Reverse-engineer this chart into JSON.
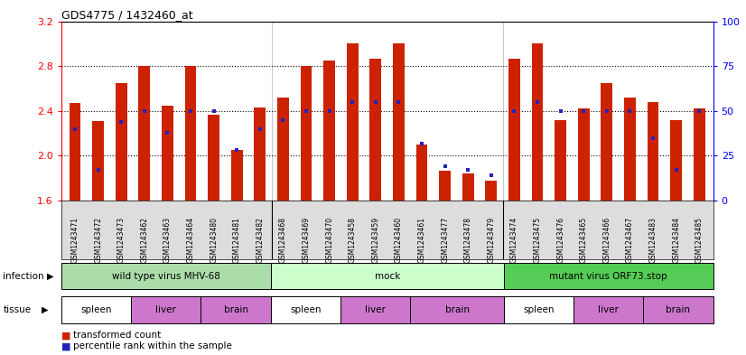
{
  "title": "GDS4775 / 1432460_at",
  "sample_ids": [
    "GSM1243471",
    "GSM1243472",
    "GSM1243473",
    "GSM1243462",
    "GSM1243463",
    "GSM1243464",
    "GSM1243480",
    "GSM1243481",
    "GSM1243482",
    "GSM1243468",
    "GSM1243469",
    "GSM1243470",
    "GSM1243458",
    "GSM1243459",
    "GSM1243460",
    "GSM1243461",
    "GSM1243477",
    "GSM1243478",
    "GSM1243479",
    "GSM1243474",
    "GSM1243475",
    "GSM1243476",
    "GSM1243465",
    "GSM1243466",
    "GSM1243467",
    "GSM1243483",
    "GSM1243484",
    "GSM1243485"
  ],
  "bar_heights": [
    2.47,
    2.31,
    2.65,
    2.8,
    2.45,
    2.8,
    2.37,
    2.05,
    2.43,
    2.52,
    2.8,
    2.85,
    3.0,
    2.87,
    3.0,
    2.1,
    1.87,
    1.84,
    1.78,
    2.87,
    3.0,
    2.32,
    2.42,
    2.65,
    2.52,
    2.48,
    2.32,
    2.42
  ],
  "percentile_values": [
    40,
    17,
    44,
    50,
    38,
    50,
    50,
    28,
    40,
    45,
    50,
    50,
    55,
    55,
    55,
    32,
    19,
    17,
    14,
    50,
    55,
    50,
    50,
    50,
    50,
    35,
    17,
    50
  ],
  "ylim": [
    1.6,
    3.2
  ],
  "yticks": [
    1.6,
    2.0,
    2.4,
    2.8,
    3.2
  ],
  "y2ticks": [
    0,
    25,
    50,
    75,
    100
  ],
  "bar_color": "#cc2200",
  "marker_color": "#2222bb",
  "infection_groups": [
    {
      "label": "wild type virus MHV-68",
      "start": 0,
      "end": 9,
      "color": "#aaddaa"
    },
    {
      "label": "mock",
      "start": 9,
      "end": 19,
      "color": "#ccffcc"
    },
    {
      "label": "mutant virus ORF73.stop",
      "start": 19,
      "end": 28,
      "color": "#55cc55"
    }
  ],
  "tissue_groups": [
    {
      "label": "spleen",
      "start": 0,
      "end": 3,
      "color": "#ffffff"
    },
    {
      "label": "liver",
      "start": 3,
      "end": 6,
      "color": "#cc77cc"
    },
    {
      "label": "brain",
      "start": 6,
      "end": 9,
      "color": "#cc77cc"
    },
    {
      "label": "spleen",
      "start": 9,
      "end": 12,
      "color": "#ffffff"
    },
    {
      "label": "liver",
      "start": 12,
      "end": 15,
      "color": "#cc77cc"
    },
    {
      "label": "brain",
      "start": 15,
      "end": 19,
      "color": "#cc77cc"
    },
    {
      "label": "spleen",
      "start": 19,
      "end": 22,
      "color": "#ffffff"
    },
    {
      "label": "liver",
      "start": 22,
      "end": 25,
      "color": "#cc77cc"
    },
    {
      "label": "brain",
      "start": 25,
      "end": 28,
      "color": "#cc77cc"
    }
  ],
  "legend_items": [
    {
      "label": "transformed count",
      "color": "#cc2200"
    },
    {
      "label": "percentile rank within the sample",
      "color": "#2222bb"
    }
  ],
  "bg_color": "#dddddd"
}
